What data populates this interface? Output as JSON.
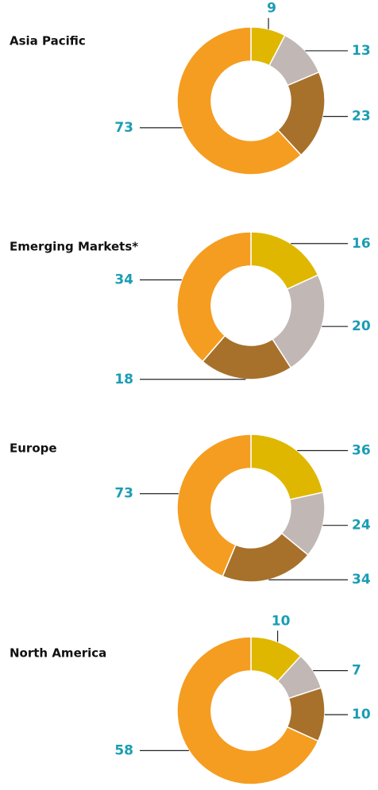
{
  "chart_data": [
    {
      "type": "donut",
      "title": "Asia Pacific",
      "values": [
        9,
        13,
        23,
        73
      ],
      "colors": [
        "#dfb700",
        "#c1b7b4",
        "#a7712b",
        "#f59d20"
      ]
    },
    {
      "type": "donut",
      "title": "Emerging Markets*",
      "values": [
        16,
        20,
        18,
        34
      ],
      "colors": [
        "#dfb700",
        "#c1b7b4",
        "#a7712b",
        "#f59d20"
      ]
    },
    {
      "type": "donut",
      "title": "Europe",
      "values": [
        36,
        24,
        34,
        73
      ],
      "colors": [
        "#dfb700",
        "#c1b7b4",
        "#a7712b",
        "#f59d20"
      ]
    },
    {
      "type": "donut",
      "title": "North America",
      "values": [
        10,
        7,
        10,
        58
      ],
      "colors": [
        "#dfb700",
        "#c1b7b4",
        "#a7712b",
        "#f59d20"
      ]
    }
  ]
}
